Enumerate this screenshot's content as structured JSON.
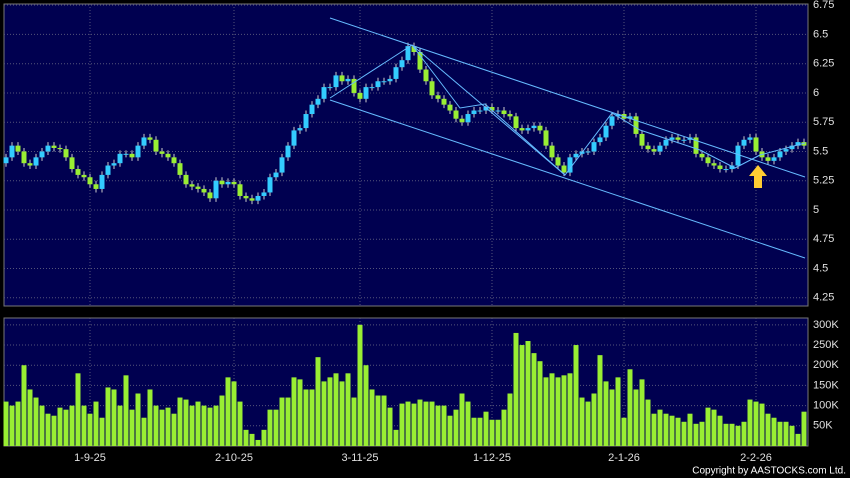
{
  "chart_data": [
    {
      "type": "candlestick",
      "up_color": "#33ccff",
      "down_color": "#99ee33",
      "wick_color": "#cccccc",
      "ylim": [
        4.18,
        6.76
      ],
      "yticks": [
        6.75,
        6.5,
        6.25,
        6,
        5.75,
        5.5,
        5.25,
        5,
        4.75,
        4.5,
        4.25
      ],
      "grid": true,
      "xticks": [
        {
          "value": 14,
          "label": "1-9-25"
        },
        {
          "value": 38,
          "label": "2-10-25"
        },
        {
          "value": 59,
          "label": "3-11-25"
        },
        {
          "value": 81,
          "label": "1-12-25"
        },
        {
          "value": 103,
          "label": "2-1-26"
        },
        {
          "value": 125,
          "label": "2-2-26"
        }
      ],
      "open": [
        5.4,
        5.45,
        5.55,
        5.5,
        5.4,
        5.38,
        5.45,
        5.5,
        5.55,
        5.53,
        5.52,
        5.45,
        5.35,
        5.3,
        5.28,
        5.22,
        5.18,
        5.3,
        5.38,
        5.4,
        5.48,
        5.48,
        5.45,
        5.55,
        5.62,
        5.6,
        5.5,
        5.48,
        5.45,
        5.4,
        5.3,
        5.22,
        5.2,
        5.18,
        5.15,
        5.1,
        5.25,
        5.22,
        5.24,
        5.22,
        5.12,
        5.1,
        5.08,
        5.12,
        5.15,
        5.28,
        5.32,
        5.45,
        5.55,
        5.68,
        5.7,
        5.82,
        5.9,
        5.95,
        6.05,
        6.05,
        6.15,
        6.1,
        6.12,
        6.0,
        5.95,
        6.05,
        6.05,
        6.1,
        6.1,
        6.12,
        6.22,
        6.28,
        6.4,
        6.35,
        6.2,
        6.1,
        5.98,
        5.95,
        5.9,
        5.85,
        5.78,
        5.75,
        5.82,
        5.85,
        5.85,
        5.88,
        5.85,
        5.85,
        5.82,
        5.8,
        5.7,
        5.68,
        5.7,
        5.72,
        5.68,
        5.55,
        5.45,
        5.38,
        5.32,
        5.45,
        5.48,
        5.5,
        5.5,
        5.58,
        5.62,
        5.72,
        5.8,
        5.82,
        5.78,
        5.8,
        5.65,
        5.55,
        5.52,
        5.5,
        5.55,
        5.6,
        5.62,
        5.6,
        5.6,
        5.62,
        5.48,
        5.45,
        5.4,
        5.38,
        5.35,
        5.35,
        5.38,
        5.55,
        5.6,
        5.62,
        5.5,
        5.45,
        5.42,
        5.45,
        5.5,
        5.52,
        5.55,
        5.58
      ],
      "high": [
        5.48,
        5.58,
        5.58,
        5.53,
        5.43,
        5.48,
        5.53,
        5.58,
        5.58,
        5.56,
        5.55,
        5.48,
        5.38,
        5.33,
        5.31,
        5.25,
        5.33,
        5.41,
        5.43,
        5.51,
        5.51,
        5.51,
        5.58,
        5.65,
        5.65,
        5.63,
        5.53,
        5.51,
        5.48,
        5.43,
        5.33,
        5.25,
        5.23,
        5.21,
        5.18,
        5.28,
        5.28,
        5.27,
        5.27,
        5.25,
        5.15,
        5.13,
        5.15,
        5.18,
        5.31,
        5.35,
        5.48,
        5.58,
        5.71,
        5.73,
        5.85,
        5.93,
        5.98,
        6.08,
        6.08,
        6.18,
        6.18,
        6.15,
        6.15,
        6.03,
        6.08,
        6.08,
        6.13,
        6.13,
        6.15,
        6.25,
        6.31,
        6.43,
        6.43,
        6.38,
        6.23,
        6.13,
        6.01,
        5.98,
        5.93,
        5.88,
        5.81,
        5.85,
        5.88,
        5.88,
        5.91,
        5.91,
        5.88,
        5.88,
        5.85,
        5.83,
        5.73,
        5.73,
        5.75,
        5.75,
        5.71,
        5.58,
        5.48,
        5.41,
        5.48,
        5.51,
        5.53,
        5.53,
        5.61,
        5.65,
        5.75,
        5.83,
        5.85,
        5.85,
        5.83,
        5.83,
        5.68,
        5.58,
        5.55,
        5.58,
        5.63,
        5.65,
        5.65,
        5.63,
        5.65,
        5.65,
        5.51,
        5.48,
        5.43,
        5.41,
        5.38,
        5.41,
        5.58,
        5.63,
        5.65,
        5.65,
        5.53,
        5.48,
        5.48,
        5.53,
        5.55,
        5.58,
        5.61,
        5.61
      ],
      "low": [
        5.37,
        5.42,
        5.47,
        5.37,
        5.35,
        5.35,
        5.42,
        5.47,
        5.5,
        5.49,
        5.42,
        5.32,
        5.27,
        5.25,
        5.19,
        5.15,
        5.15,
        5.27,
        5.35,
        5.37,
        5.45,
        5.42,
        5.42,
        5.52,
        5.57,
        5.47,
        5.45,
        5.42,
        5.37,
        5.27,
        5.19,
        5.17,
        5.15,
        5.12,
        5.07,
        5.07,
        5.19,
        5.19,
        5.19,
        5.09,
        5.07,
        5.05,
        5.05,
        5.09,
        5.12,
        5.25,
        5.29,
        5.42,
        5.52,
        5.65,
        5.67,
        5.79,
        5.87,
        5.92,
        6.02,
        6.02,
        6.07,
        6.07,
        5.97,
        5.92,
        5.92,
        6.02,
        6.02,
        6.07,
        6.07,
        6.09,
        6.19,
        6.25,
        6.32,
        6.17,
        6.07,
        5.95,
        5.92,
        5.87,
        5.82,
        5.75,
        5.72,
        5.72,
        5.79,
        5.82,
        5.82,
        5.82,
        5.82,
        5.79,
        5.77,
        5.67,
        5.65,
        5.65,
        5.67,
        5.65,
        5.52,
        5.42,
        5.35,
        5.29,
        5.29,
        5.42,
        5.45,
        5.47,
        5.47,
        5.55,
        5.59,
        5.69,
        5.77,
        5.75,
        5.75,
        5.62,
        5.52,
        5.49,
        5.47,
        5.47,
        5.52,
        5.57,
        5.57,
        5.57,
        5.57,
        5.45,
        5.42,
        5.37,
        5.35,
        5.32,
        5.32,
        5.32,
        5.35,
        5.52,
        5.57,
        5.47,
        5.42,
        5.39,
        5.39,
        5.42,
        5.47,
        5.49,
        5.52,
        5.52
      ],
      "close": [
        5.45,
        5.55,
        5.5,
        5.4,
        5.38,
        5.45,
        5.5,
        5.55,
        5.53,
        5.52,
        5.45,
        5.35,
        5.3,
        5.28,
        5.22,
        5.18,
        5.3,
        5.38,
        5.4,
        5.48,
        5.48,
        5.45,
        5.55,
        5.62,
        5.6,
        5.5,
        5.48,
        5.45,
        5.4,
        5.3,
        5.22,
        5.2,
        5.18,
        5.15,
        5.1,
        5.25,
        5.22,
        5.24,
        5.22,
        5.12,
        5.1,
        5.08,
        5.12,
        5.15,
        5.28,
        5.32,
        5.45,
        5.55,
        5.68,
        5.7,
        5.82,
        5.9,
        5.95,
        6.05,
        6.05,
        6.15,
        6.1,
        6.12,
        6.0,
        5.95,
        6.05,
        6.05,
        6.1,
        6.1,
        6.12,
        6.22,
        6.28,
        6.4,
        6.35,
        6.2,
        6.1,
        5.98,
        5.95,
        5.9,
        5.85,
        5.78,
        5.75,
        5.82,
        5.85,
        5.85,
        5.88,
        5.85,
        5.85,
        5.82,
        5.8,
        5.7,
        5.68,
        5.7,
        5.72,
        5.68,
        5.55,
        5.45,
        5.38,
        5.32,
        5.45,
        5.48,
        5.5,
        5.5,
        5.58,
        5.62,
        5.72,
        5.8,
        5.82,
        5.78,
        5.8,
        5.65,
        5.55,
        5.52,
        5.5,
        5.55,
        5.6,
        5.62,
        5.6,
        5.6,
        5.62,
        5.48,
        5.45,
        5.4,
        5.38,
        5.35,
        5.35,
        5.38,
        5.55,
        5.6,
        5.62,
        5.5,
        5.45,
        5.42,
        5.45,
        5.5,
        5.52,
        5.55,
        5.58,
        5.55
      ]
    },
    {
      "type": "bar",
      "color": "#99ee33",
      "ylim": [
        0,
        317000
      ],
      "yticks": [
        {
          "value": 300000,
          "label": "300K"
        },
        {
          "value": 250000,
          "label": "250K"
        },
        {
          "value": 200000,
          "label": "200K"
        },
        {
          "value": 150000,
          "label": "150K"
        },
        {
          "value": 100000,
          "label": "100K"
        },
        {
          "value": 50000,
          "label": "50K"
        }
      ],
      "grid": true,
      "values": [
        110000,
        100000,
        110000,
        200000,
        140000,
        120000,
        100000,
        80000,
        75000,
        95000,
        90000,
        100000,
        180000,
        100000,
        80000,
        110000,
        70000,
        145000,
        140000,
        100000,
        175000,
        90000,
        130000,
        70000,
        140000,
        100000,
        90000,
        95000,
        80000,
        120000,
        115000,
        100000,
        110000,
        100000,
        95000,
        100000,
        125000,
        170000,
        160000,
        110000,
        40000,
        30000,
        15000,
        40000,
        90000,
        90000,
        120000,
        120000,
        170000,
        165000,
        140000,
        140000,
        220000,
        160000,
        170000,
        180000,
        160000,
        180000,
        120000,
        300000,
        200000,
        140000,
        125000,
        125000,
        95000,
        40000,
        105000,
        110000,
        105000,
        115000,
        110000,
        110000,
        100000,
        100000,
        75000,
        90000,
        130000,
        110000,
        70000,
        70000,
        85000,
        65000,
        65000,
        90000,
        130000,
        280000,
        250000,
        260000,
        230000,
        210000,
        170000,
        180000,
        170000,
        175000,
        180000,
        250000,
        120000,
        110000,
        130000,
        225000,
        160000,
        140000,
        170000,
        70000,
        190000,
        140000,
        165000,
        115000,
        80000,
        90000,
        80000,
        75000,
        70000,
        60000,
        80000,
        55000,
        60000,
        95000,
        90000,
        75000,
        55000,
        55000,
        50000,
        60000,
        115000,
        110000,
        105000,
        80000,
        70000,
        60000,
        60000,
        50000,
        30000,
        85000
      ]
    }
  ],
  "copyright": "Copyright by AASTOCKS.com Ltd."
}
